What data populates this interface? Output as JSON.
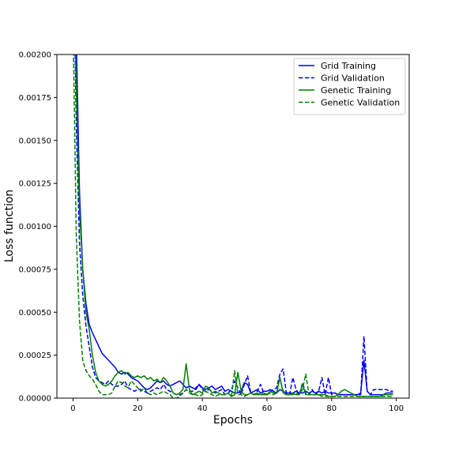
{
  "chart_data": {
    "type": "line",
    "title": "",
    "xlabel": "Epochs",
    "ylabel": "Loss function",
    "xlim": [
      -5,
      104
    ],
    "ylim": [
      0,
      0.002
    ],
    "xticks": [
      0,
      20,
      40,
      60,
      80,
      100
    ],
    "xtick_labels": [
      "0",
      "20",
      "40",
      "60",
      "80",
      "100"
    ],
    "yticks": [
      0,
      0.00025,
      0.0005,
      0.00075,
      0.001,
      0.00125,
      0.0015,
      0.00175,
      0.002
    ],
    "ytick_labels": [
      "0.00000",
      "0.00025",
      "0.00050",
      "0.00075",
      "0.00100",
      "0.00125",
      "0.00150",
      "0.00175",
      "0.00200"
    ],
    "grid": false,
    "legend_position": "top-right",
    "series": [
      {
        "name": "Grid Training",
        "color": "#0000ff",
        "dash": "solid",
        "x": [
          0,
          1,
          2,
          3,
          4,
          5,
          6,
          7,
          8,
          9,
          10,
          11,
          12,
          13,
          14,
          15,
          16,
          17,
          18,
          19,
          20,
          21,
          22,
          23,
          24,
          25,
          26,
          27,
          28,
          29,
          30,
          31,
          32,
          33,
          34,
          35,
          36,
          37,
          38,
          39,
          40,
          41,
          42,
          43,
          44,
          45,
          46,
          47,
          48,
          49,
          50,
          51,
          52,
          53,
          54,
          55,
          56,
          57,
          58,
          59,
          60,
          61,
          62,
          63,
          64,
          65,
          66,
          67,
          68,
          69,
          70,
          71,
          72,
          73,
          74,
          75,
          76,
          77,
          78,
          79,
          80,
          81,
          82,
          83,
          84,
          85,
          86,
          87,
          88,
          89,
          90,
          91,
          92,
          93,
          94,
          95,
          96,
          97,
          98,
          99
        ],
        "y": [
          0.0035,
          0.0021,
          0.0012,
          0.00075,
          0.00055,
          0.00043,
          0.00038,
          0.00034,
          0.0003,
          0.00026,
          0.00024,
          0.00022,
          0.0002,
          0.00018,
          0.00015,
          0.00014,
          0.00015,
          0.00014,
          0.00012,
          0.00011,
          0.0001,
          8e-05,
          6e-05,
          5e-05,
          6e-05,
          8e-05,
          0.0001,
          9e-05,
          0.0001,
          8e-05,
          7e-05,
          8e-05,
          9e-05,
          0.0001,
          8e-05,
          6e-05,
          7e-05,
          6e-05,
          5e-05,
          8e-05,
          6e-05,
          5e-05,
          6e-05,
          7e-05,
          5e-05,
          6e-05,
          7e-05,
          4e-05,
          5e-05,
          4e-05,
          3e-05,
          3e-05,
          4e-05,
          9e-05,
          8e-05,
          3e-05,
          4e-05,
          5e-05,
          3e-05,
          4e-05,
          4e-05,
          5e-05,
          4e-05,
          3e-05,
          5e-05,
          4e-05,
          3e-05,
          3e-05,
          3e-05,
          4e-05,
          3e-05,
          3e-05,
          4e-05,
          3e-05,
          4e-05,
          3e-05,
          4e-05,
          3e-05,
          4e-05,
          3e-05,
          3e-05,
          3e-05,
          2e-05,
          2e-05,
          2e-05,
          2e-05,
          2e-05,
          2e-05,
          2e-05,
          3e-05,
          0.00022,
          4e-05,
          2e-05,
          2e-05,
          2e-05,
          2e-05,
          2e-05,
          3e-05,
          3e-05,
          3e-05
        ]
      },
      {
        "name": "Grid Validation",
        "color": "#0000ff",
        "dash": "dashed",
        "x": [
          0,
          1,
          2,
          3,
          4,
          5,
          6,
          7,
          8,
          9,
          10,
          11,
          12,
          13,
          14,
          15,
          16,
          17,
          18,
          19,
          20,
          21,
          22,
          23,
          24,
          25,
          26,
          27,
          28,
          29,
          30,
          31,
          32,
          33,
          34,
          35,
          36,
          37,
          38,
          39,
          40,
          41,
          42,
          43,
          44,
          45,
          46,
          47,
          48,
          49,
          50,
          51,
          52,
          53,
          54,
          55,
          56,
          57,
          58,
          59,
          60,
          61,
          62,
          63,
          64,
          65,
          66,
          67,
          68,
          69,
          70,
          71,
          72,
          73,
          74,
          75,
          76,
          77,
          78,
          79,
          80,
          81,
          82,
          83,
          84,
          85,
          86,
          87,
          88,
          89,
          90,
          91,
          92,
          93,
          94,
          95,
          96,
          97,
          98,
          99
        ],
        "y": [
          0.0028,
          0.0016,
          0.0009,
          0.0006,
          0.00042,
          0.0003,
          0.00018,
          0.00012,
          0.0001,
          9e-05,
          8e-05,
          0.0001,
          8e-05,
          7e-05,
          7e-05,
          8e-05,
          0.0001,
          6e-05,
          5e-05,
          4e-05,
          5e-05,
          5e-05,
          4e-05,
          3e-05,
          4e-05,
          5e-05,
          6e-05,
          5e-05,
          8e-05,
          5e-05,
          4e-05,
          3e-05,
          2e-05,
          2e-05,
          3e-05,
          5e-05,
          4e-05,
          4e-05,
          6e-05,
          8e-05,
          5e-05,
          4e-05,
          5e-05,
          4e-05,
          3e-05,
          4e-05,
          5e-05,
          2e-05,
          3e-05,
          5e-05,
          0.0001,
          6e-05,
          2e-05,
          8e-05,
          0.00013,
          3e-05,
          2e-05,
          4e-05,
          8e-05,
          3e-05,
          2e-05,
          4e-05,
          5e-05,
          6e-05,
          0.00014,
          0.00017,
          3e-05,
          2e-05,
          0.00012,
          5e-05,
          2e-05,
          9e-05,
          3e-05,
          2e-05,
          5e-05,
          2e-05,
          4e-05,
          0.00012,
          2e-05,
          0.00012,
          2e-05,
          3e-05,
          2e-05,
          2e-05,
          2e-05,
          2e-05,
          2e-05,
          2e-05,
          2e-05,
          2e-05,
          0.00036,
          4e-05,
          2e-05,
          5e-05,
          5e-05,
          5e-05,
          5e-05,
          5e-05,
          4e-05,
          4e-05
        ]
      },
      {
        "name": "Genetic Training",
        "color": "#008000",
        "dash": "solid",
        "x": [
          0,
          1,
          2,
          3,
          4,
          5,
          6,
          7,
          8,
          9,
          10,
          11,
          12,
          13,
          14,
          15,
          16,
          17,
          18,
          19,
          20,
          21,
          22,
          23,
          24,
          25,
          26,
          27,
          28,
          29,
          30,
          31,
          32,
          33,
          34,
          35,
          36,
          37,
          38,
          39,
          40,
          41,
          42,
          43,
          44,
          45,
          46,
          47,
          48,
          49,
          50,
          51,
          52,
          53,
          54,
          55,
          56,
          57,
          58,
          59,
          60,
          61,
          62,
          63,
          64,
          65,
          66,
          67,
          68,
          69,
          70,
          71,
          72,
          73,
          74,
          75,
          76,
          77,
          78,
          79,
          80,
          81,
          82,
          83,
          84,
          85,
          86,
          87,
          88,
          89,
          90,
          91,
          92,
          93,
          94,
          95,
          96,
          97,
          98,
          99
        ],
        "y": [
          0.0028,
          0.0018,
          0.0011,
          0.00075,
          0.0005,
          0.0004,
          0.00025,
          0.00015,
          0.0001,
          8e-05,
          7e-05,
          8e-05,
          0.0001,
          0.00013,
          0.00015,
          0.00016,
          0.00014,
          0.00015,
          0.00013,
          0.00012,
          0.00013,
          0.00012,
          0.00013,
          0.00011,
          0.00012,
          0.0001,
          0.00011,
          9e-05,
          0.00012,
          0.0001,
          7e-05,
          3e-05,
          2e-05,
          3e-05,
          5e-05,
          0.0002,
          5e-05,
          2e-05,
          3e-05,
          4e-05,
          3e-05,
          7e-05,
          6e-05,
          3e-05,
          4e-05,
          3e-05,
          2e-05,
          2e-05,
          3e-05,
          1e-05,
          2e-05,
          0.00015,
          4e-05,
          2e-05,
          2e-05,
          3e-05,
          2e-05,
          3e-05,
          2e-05,
          2e-05,
          2e-05,
          4e-05,
          3e-05,
          3e-05,
          0.00012,
          3e-05,
          2e-05,
          2e-05,
          3e-05,
          2e-05,
          2e-05,
          8e-05,
          2e-05,
          2e-05,
          2e-05,
          2e-05,
          2e-05,
          2e-05,
          2e-05,
          1e-05,
          1e-05,
          1e-05,
          2e-05,
          4e-05,
          5e-05,
          4e-05,
          3e-05,
          2e-05,
          1e-05,
          1e-05,
          1e-05,
          1e-05,
          1e-05,
          1e-05,
          1e-05,
          1e-05,
          2e-05,
          2e-05,
          2e-05,
          2e-05
        ]
      },
      {
        "name": "Genetic Validation",
        "color": "#008000",
        "dash": "dashed",
        "x": [
          0,
          1,
          2,
          3,
          4,
          5,
          6,
          7,
          8,
          9,
          10,
          11,
          12,
          13,
          14,
          15,
          16,
          17,
          18,
          19,
          20,
          21,
          22,
          23,
          24,
          25,
          26,
          27,
          28,
          29,
          30,
          31,
          32,
          33,
          34,
          35,
          36,
          37,
          38,
          39,
          40,
          41,
          42,
          43,
          44,
          45,
          46,
          47,
          48,
          49,
          50,
          51,
          52,
          53,
          54,
          55,
          56,
          57,
          58,
          59,
          60,
          61,
          62,
          63,
          64,
          65,
          66,
          67,
          68,
          69,
          70,
          71,
          72,
          73,
          74,
          75,
          76,
          77,
          78,
          79,
          80,
          81,
          82,
          83,
          84,
          85,
          86,
          87,
          88,
          89,
          90,
          91,
          92,
          93,
          94,
          95,
          96,
          97,
          98,
          99
        ],
        "y": [
          0.0022,
          0.00095,
          0.00045,
          0.00022,
          0.00016,
          0.00013,
          0.00011,
          8e-05,
          4e-05,
          2e-05,
          2e-05,
          2e-05,
          3e-05,
          7e-05,
          0.0001,
          9e-05,
          7e-05,
          6e-05,
          0.0001,
          8e-05,
          6e-05,
          4e-05,
          6e-05,
          3e-05,
          2e-05,
          3e-05,
          2e-05,
          3e-05,
          4e-05,
          3e-05,
          2e-05,
          0.0,
          0.0,
          1e-05,
          3e-05,
          5e-05,
          3e-05,
          2e-05,
          2e-05,
          1e-05,
          2e-05,
          4e-05,
          3e-05,
          2e-05,
          1e-05,
          2e-05,
          2e-05,
          2e-05,
          3e-05,
          1e-05,
          0.00016,
          2e-05,
          2e-05,
          1e-05,
          2e-05,
          3e-05,
          2e-05,
          2e-05,
          2e-05,
          3e-05,
          2e-05,
          3e-05,
          2e-05,
          3e-05,
          0.00012,
          4e-05,
          2e-05,
          2e-05,
          2e-05,
          3e-05,
          2e-05,
          5e-05,
          0.00014,
          2e-05,
          2e-05,
          2e-05,
          2e-05,
          1e-05,
          1e-05,
          1e-05,
          1e-05,
          1e-05,
          1e-05,
          1e-05,
          1e-05,
          1e-05,
          1e-05,
          1e-05,
          1e-05,
          1e-05,
          1e-05,
          1e-05,
          1e-05,
          1e-05,
          1e-05,
          1e-05,
          1e-05,
          1e-05,
          1e-05,
          1e-05
        ]
      }
    ]
  }
}
